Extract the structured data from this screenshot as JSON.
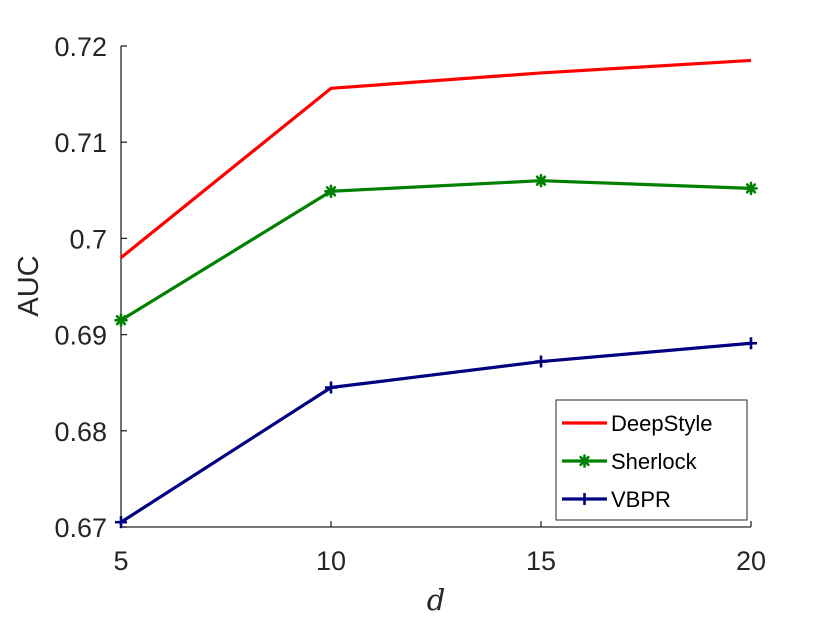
{
  "chart_data": {
    "type": "line",
    "title": "",
    "xlabel": "d",
    "ylabel": "AUC",
    "x": [
      5,
      10,
      15,
      20
    ],
    "xlim": [
      5,
      20
    ],
    "ylim": [
      0.67,
      0.72
    ],
    "xticks": [
      "5",
      "10",
      "15",
      "20"
    ],
    "yticks": [
      "0.67",
      "0.68",
      "0.69",
      "0.7",
      "0.71",
      "0.72"
    ],
    "grid": false,
    "legend_position": "bottom-right",
    "series": [
      {
        "name": "DeepStyle",
        "values": [
          0.698,
          0.7156,
          0.7172,
          0.7185
        ],
        "color": "#ff0000",
        "marker": "none"
      },
      {
        "name": "Sherlock",
        "values": [
          0.6915,
          0.7049,
          0.706,
          0.7052
        ],
        "color": "#008000",
        "marker": "star"
      },
      {
        "name": "VBPR",
        "values": [
          0.6705,
          0.6845,
          0.6872,
          0.6891
        ],
        "color": "#000080",
        "marker": "plus"
      }
    ]
  }
}
